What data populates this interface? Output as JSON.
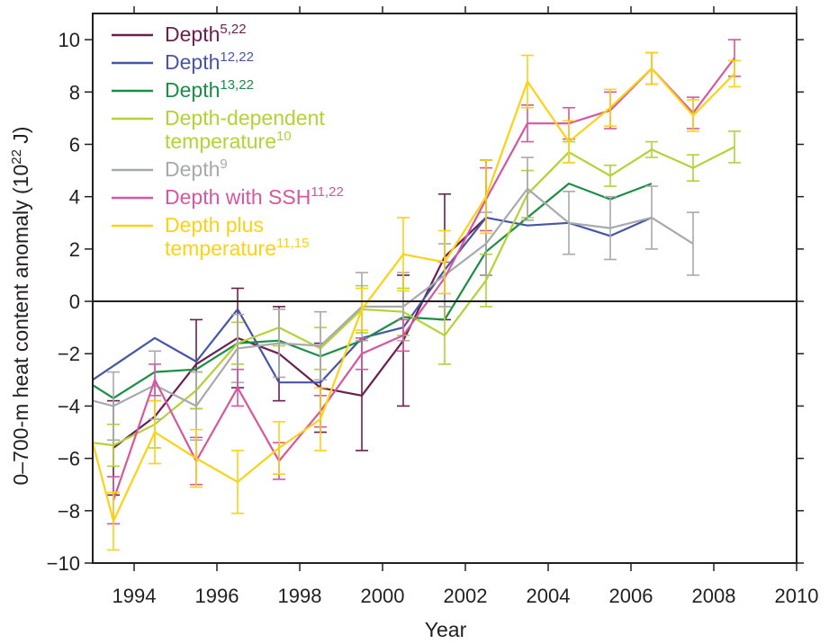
{
  "chart_data": {
    "type": "line",
    "xlabel": "Year",
    "ylabel": "0–700-m heat content anomaly (10",
    "ylabel_sup": "22",
    "ylabel_end": " J)",
    "xlim": [
      1993,
      2010
    ],
    "ylim": [
      -10,
      11
    ],
    "xticks": [
      1994,
      1996,
      1998,
      2000,
      2002,
      2004,
      2006,
      2008,
      2010
    ],
    "xtick_labels": [
      "1994",
      "1996",
      "1998",
      "2000",
      "2002",
      "2004",
      "2006",
      "2008",
      "2010"
    ],
    "yticks": [
      -10,
      -8,
      -6,
      -4,
      -2,
      0,
      2,
      4,
      6,
      8,
      10
    ],
    "ytick_labels": [
      "−10",
      "−8",
      "−6",
      "−4",
      "−2",
      "0",
      "2",
      "4",
      "6",
      "8",
      "10"
    ],
    "zero_line": true,
    "grid": false,
    "legend_position": "top-left",
    "series": [
      {
        "label": [
          "Depth"
        ],
        "sup": [
          "5,22"
        ],
        "color": "#6b1f4f",
        "x": [
          1993.5,
          1994.5,
          1995.5,
          1996.5,
          1997.5,
          1998.5,
          1999.5,
          2000.5,
          2001.5,
          2002.5
        ],
        "y": [
          -5.6,
          -4.4,
          -2.4,
          -1.4,
          -2.0,
          -3.3,
          -3.6,
          -1.5,
          1.7,
          3.2
        ],
        "err": [
          1.8,
          0.0,
          1.7,
          1.9,
          1.8,
          1.7,
          2.1,
          2.5,
          2.4,
          2.2
        ]
      },
      {
        "label": [
          "Depth"
        ],
        "sup": [
          "12,22"
        ],
        "color": "#4655a6",
        "x": [
          1993,
          1994.5,
          1995.5,
          1996.5,
          1997.5,
          1998.5,
          1999.5,
          2000.5,
          2001.5,
          2002.5,
          2003.5,
          2004.5,
          2005.5,
          2006.5
        ],
        "y": [
          -3.0,
          -1.4,
          -2.3,
          -0.3,
          -3.1,
          -3.1,
          -1.4,
          -1.0,
          1.2,
          3.2,
          2.9,
          3.0,
          2.5,
          3.2
        ],
        "err": [
          0,
          0,
          0,
          0,
          0,
          0,
          0,
          0,
          0,
          0,
          0,
          0,
          0,
          0
        ]
      },
      {
        "label": [
          "Depth"
        ],
        "sup": [
          "13,22"
        ],
        "color": "#1b8d45",
        "x": [
          1993,
          1993.5,
          1994.5,
          1995.5,
          1996.5,
          1997.5,
          1998.5,
          1999.5,
          2000.5,
          2001.5,
          2002.5,
          2003.5,
          2004.5,
          2005.5,
          2006.5
        ],
        "y": [
          -3.2,
          -3.7,
          -2.7,
          -2.6,
          -1.6,
          -1.5,
          -2.1,
          -1.5,
          -0.6,
          -0.7,
          1.9,
          3.2,
          4.5,
          3.9,
          4.5
        ],
        "err": [
          0,
          0,
          0,
          0,
          0,
          0,
          0,
          0,
          0,
          0,
          0,
          0,
          0,
          0,
          0
        ]
      },
      {
        "label": [
          "Depth-dependent",
          "temperature"
        ],
        "sup": [
          "",
          "10"
        ],
        "color": "#b3d236",
        "x": [
          1993,
          1993.5,
          1994.5,
          1995.5,
          1996.5,
          1997.5,
          1998.5,
          1999.5,
          2000.5,
          2001.5,
          2002.5,
          2003.5,
          2004.5,
          2005.5,
          2006.5,
          2007.5,
          2008.5
        ],
        "y": [
          -5.4,
          -5.5,
          -4.7,
          -3.4,
          -1.6,
          -1.0,
          -1.8,
          -0.3,
          -0.4,
          -1.3,
          0.8,
          4.1,
          5.7,
          4.8,
          5.8,
          5.1,
          5.9
        ],
        "err": [
          0,
          0.8,
          0.9,
          0.7,
          0.8,
          0.7,
          0.8,
          0.9,
          0.9,
          1.1,
          1.0,
          0.9,
          0.4,
          0.4,
          0.3,
          0.5,
          0.6
        ]
      },
      {
        "label": [
          "Depth"
        ],
        "sup": [
          "9"
        ],
        "color": "#a7a9ac",
        "x": [
          1993,
          1993.5,
          1994.5,
          1995.5,
          1996.5,
          1997.5,
          1998.5,
          1999.5,
          2000.5,
          2001.5,
          2002.5,
          2003.5,
          2004.5,
          2005.5,
          2006.5,
          2007.5
        ],
        "y": [
          -3.8,
          -4.0,
          -3.2,
          -4.0,
          -1.8,
          -1.6,
          -1.7,
          -0.2,
          -0.2,
          1.0,
          2.2,
          4.3,
          3.0,
          2.8,
          3.2,
          2.2
        ],
        "err": [
          0,
          1.3,
          1.3,
          1.3,
          1.3,
          1.3,
          1.3,
          1.3,
          1.3,
          1.2,
          1.2,
          1.2,
          1.2,
          1.2,
          1.2,
          1.2
        ]
      },
      {
        "label": [
          "Depth with SSH"
        ],
        "sup": [
          "11,22"
        ],
        "color": "#d4579f",
        "x": [
          1993.5,
          1994.5,
          1995.5,
          1996.5,
          1997.5,
          1998.5,
          1999.5,
          2000.5,
          2001.5,
          2002.5,
          2003.5,
          2004.5,
          2005.5,
          2006.5,
          2007.5,
          2008.5
        ],
        "y": [
          -7.6,
          -3.0,
          -6.1,
          -3.3,
          -6.1,
          -4.2,
          -2.0,
          -1.3,
          0.9,
          3.9,
          6.8,
          6.8,
          7.3,
          8.9,
          7.2,
          9.3
        ],
        "err": [
          0.9,
          0.6,
          0.9,
          0.7,
          0.7,
          0.6,
          0.6,
          0.6,
          0.6,
          1.2,
          0.7,
          0.6,
          0.7,
          0.6,
          0.6,
          0.7
        ]
      },
      {
        "label": [
          "Depth plus",
          "temperature"
        ],
        "sup": [
          "",
          "11,15"
        ],
        "color": "#fcd213",
        "x": [
          1993,
          1993.5,
          1994.5,
          1995.5,
          1996.5,
          1997.5,
          1998.5,
          1999.5,
          2000.5,
          2001.5,
          2002.5,
          2003.5,
          2004.5,
          2005.5,
          2006.5,
          2007.5,
          2008.5
        ],
        "y": [
          -5.4,
          -8.4,
          -5.0,
          -6.0,
          -6.9,
          -5.6,
          -4.5,
          -0.3,
          1.8,
          1.5,
          4.0,
          8.4,
          6.1,
          7.4,
          8.9,
          7.1,
          8.7
        ],
        "err": [
          0,
          1.1,
          1.2,
          1.1,
          1.2,
          1.0,
          1.2,
          0.8,
          1.4,
          1.2,
          1.4,
          1.0,
          0.8,
          0.7,
          0.6,
          0.6,
          0.5
        ]
      }
    ]
  }
}
